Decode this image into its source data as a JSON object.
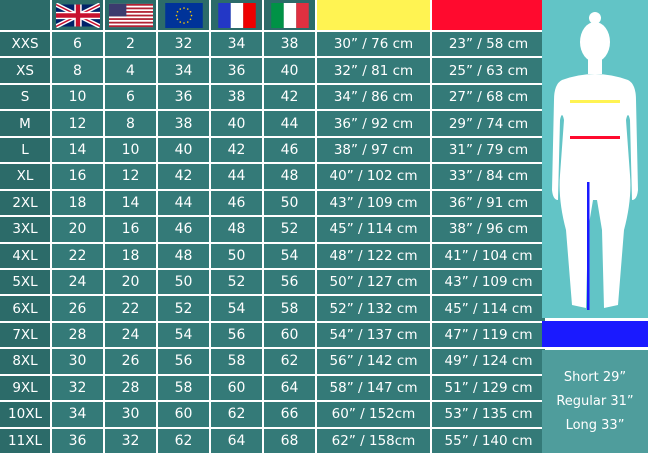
{
  "header": {
    "flags": [
      "uk-flag",
      "us-flag",
      "eu-flag",
      "france-flag",
      "italy-flag"
    ],
    "measure_colors": {
      "hip": "#fff352",
      "waist": "#ff0a2e"
    }
  },
  "colors": {
    "cell": "#347a78",
    "size_cell": "#2c6b69",
    "figure_bg": "#62c4c6",
    "inseam": "#1a1aff"
  },
  "rows": [
    [
      "XXS",
      "6",
      "2",
      "32",
      "34",
      "38",
      "30” / 76 cm",
      "23” / 58 cm"
    ],
    [
      "XS",
      "8",
      "4",
      "34",
      "36",
      "40",
      "32” / 81 cm",
      "25” / 63 cm"
    ],
    [
      "S",
      "10",
      "6",
      "36",
      "38",
      "42",
      "34” / 86 cm",
      "27” / 68 cm"
    ],
    [
      "M",
      "12",
      "8",
      "38",
      "40",
      "44",
      "36” / 92 cm",
      "29” / 74 cm"
    ],
    [
      "L",
      "14",
      "10",
      "40",
      "42",
      "46",
      "38” / 97 cm",
      "31” / 79 cm"
    ],
    [
      "XL",
      "16",
      "12",
      "42",
      "44",
      "48",
      "40” / 102 cm",
      "33” / 84 cm"
    ],
    [
      "2XL",
      "18",
      "14",
      "44",
      "46",
      "50",
      "43” / 109 cm",
      "36” / 91 cm"
    ],
    [
      "3XL",
      "20",
      "16",
      "46",
      "48",
      "52",
      "45” / 114 cm",
      "38” / 96 cm"
    ],
    [
      "4XL",
      "22",
      "18",
      "48",
      "50",
      "54",
      "48” / 122 cm",
      "41” / 104 cm"
    ],
    [
      "5XL",
      "24",
      "20",
      "50",
      "52",
      "56",
      "50” / 127 cm",
      "43” / 109 cm"
    ],
    [
      "6XL",
      "26",
      "22",
      "52",
      "54",
      "58",
      "52” / 132 cm",
      "45” / 114 cm"
    ],
    [
      "7XL",
      "28",
      "24",
      "54",
      "56",
      "60",
      "54” / 137 cm",
      "47” / 119 cm"
    ],
    [
      "8XL",
      "30",
      "26",
      "56",
      "58",
      "62",
      "56” / 142 cm",
      "49” / 124 cm"
    ],
    [
      "9XL",
      "32",
      "28",
      "58",
      "60",
      "64",
      "58” / 147 cm",
      "51” / 129 cm"
    ],
    [
      "10XL",
      "34",
      "30",
      "60",
      "62",
      "66",
      "60” / 152cm",
      "53” / 135 cm"
    ],
    [
      "11XL",
      "36",
      "32",
      "62",
      "64",
      "68",
      "62” / 158cm",
      "55” / 140 cm"
    ]
  ],
  "lengths": [
    "Short 29”",
    "Regular 31”",
    "Long 33”"
  ]
}
